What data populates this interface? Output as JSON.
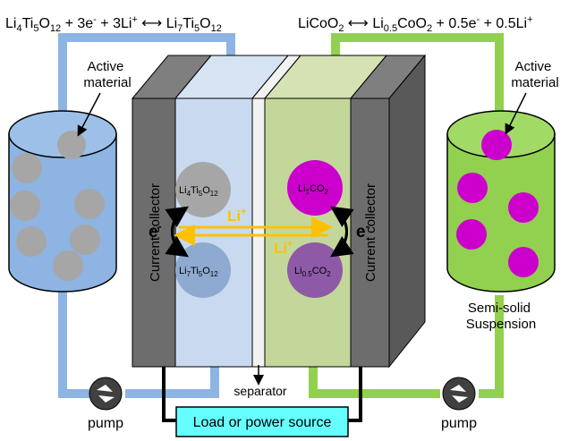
{
  "equations": {
    "left": {
      "lhs_a": "Li",
      "lhs_a_sub": "4",
      "lhs_b": "Ti",
      "lhs_b_sub": "5",
      "lhs_c": "O",
      "lhs_c_sub": "12",
      "middle": " + 3e",
      "middle_sup": "-",
      "middle_b": " + 3Li",
      "middle_b_sup": "+",
      "arrow": " ⟷ ",
      "rhs_a": "Li",
      "rhs_a_sub": "7",
      "rhs_b": "Ti",
      "rhs_b_sub": "5",
      "rhs_c": "O",
      "rhs_c_sub": "12"
    },
    "right": {
      "lhs": "LiCoO",
      "lhs_sub": "2",
      "arrow": " ⟷ ",
      "rhs_a": "Li",
      "rhs_a_sub": "0.5",
      "rhs_b": "CoO",
      "rhs_b_sub": "2",
      "rest": " + 0.5e",
      "rest_sup": "-",
      "rest_b": " + 0.5Li",
      "rest_b_sup": "+"
    }
  },
  "labels": {
    "active_material_left": [
      "Active",
      "material"
    ],
    "active_material_right": [
      "Active",
      "material"
    ],
    "current_collector_left": "Current collector",
    "current_collector_right": "Current collector",
    "separator": "separator",
    "pump_left": "pump",
    "pump_right": "pump",
    "suspension": [
      "Semi-solid",
      "Suspension"
    ],
    "load": "Load or power source",
    "electron_left": "e",
    "electron_left_sup": "-",
    "electron_right": "e",
    "electron_right_sup": "-",
    "li_ion_top": "Li",
    "li_ion_top_sup": "+",
    "li_ion_bottom": "Li",
    "li_ion_bottom_sup": "+"
  },
  "particles": {
    "anode_top": {
      "a": "Li",
      "a_sub": "4",
      "b": "Ti",
      "b_sub": "5",
      "c": "O",
      "c_sub": "12"
    },
    "anode_bottom": {
      "a": "Li",
      "a_sub": "7",
      "b": "Ti",
      "b_sub": "5",
      "c": "O",
      "c_sub": "12"
    },
    "cathode_top": {
      "a": "Li",
      "a_sub": "1",
      "b": "CO",
      "b_sub": "2"
    },
    "cathode_bottom": {
      "a": "Li",
      "a_sub": "0.5",
      "b": "CO",
      "b_sub": "2"
    }
  },
  "colors": {
    "anolyte_blue": "#8db4e2",
    "catholyte_green": "#92d050",
    "anode_panel": "#c9daf0",
    "cathode_panel": "#c4d79b",
    "collector_gray": "#6d6d6d",
    "particle_gray": "#a6a6a6",
    "particle_magenta": "#cc00cc",
    "arrow_orange": "#ffc000",
    "load_cyan": "#66ffff"
  }
}
